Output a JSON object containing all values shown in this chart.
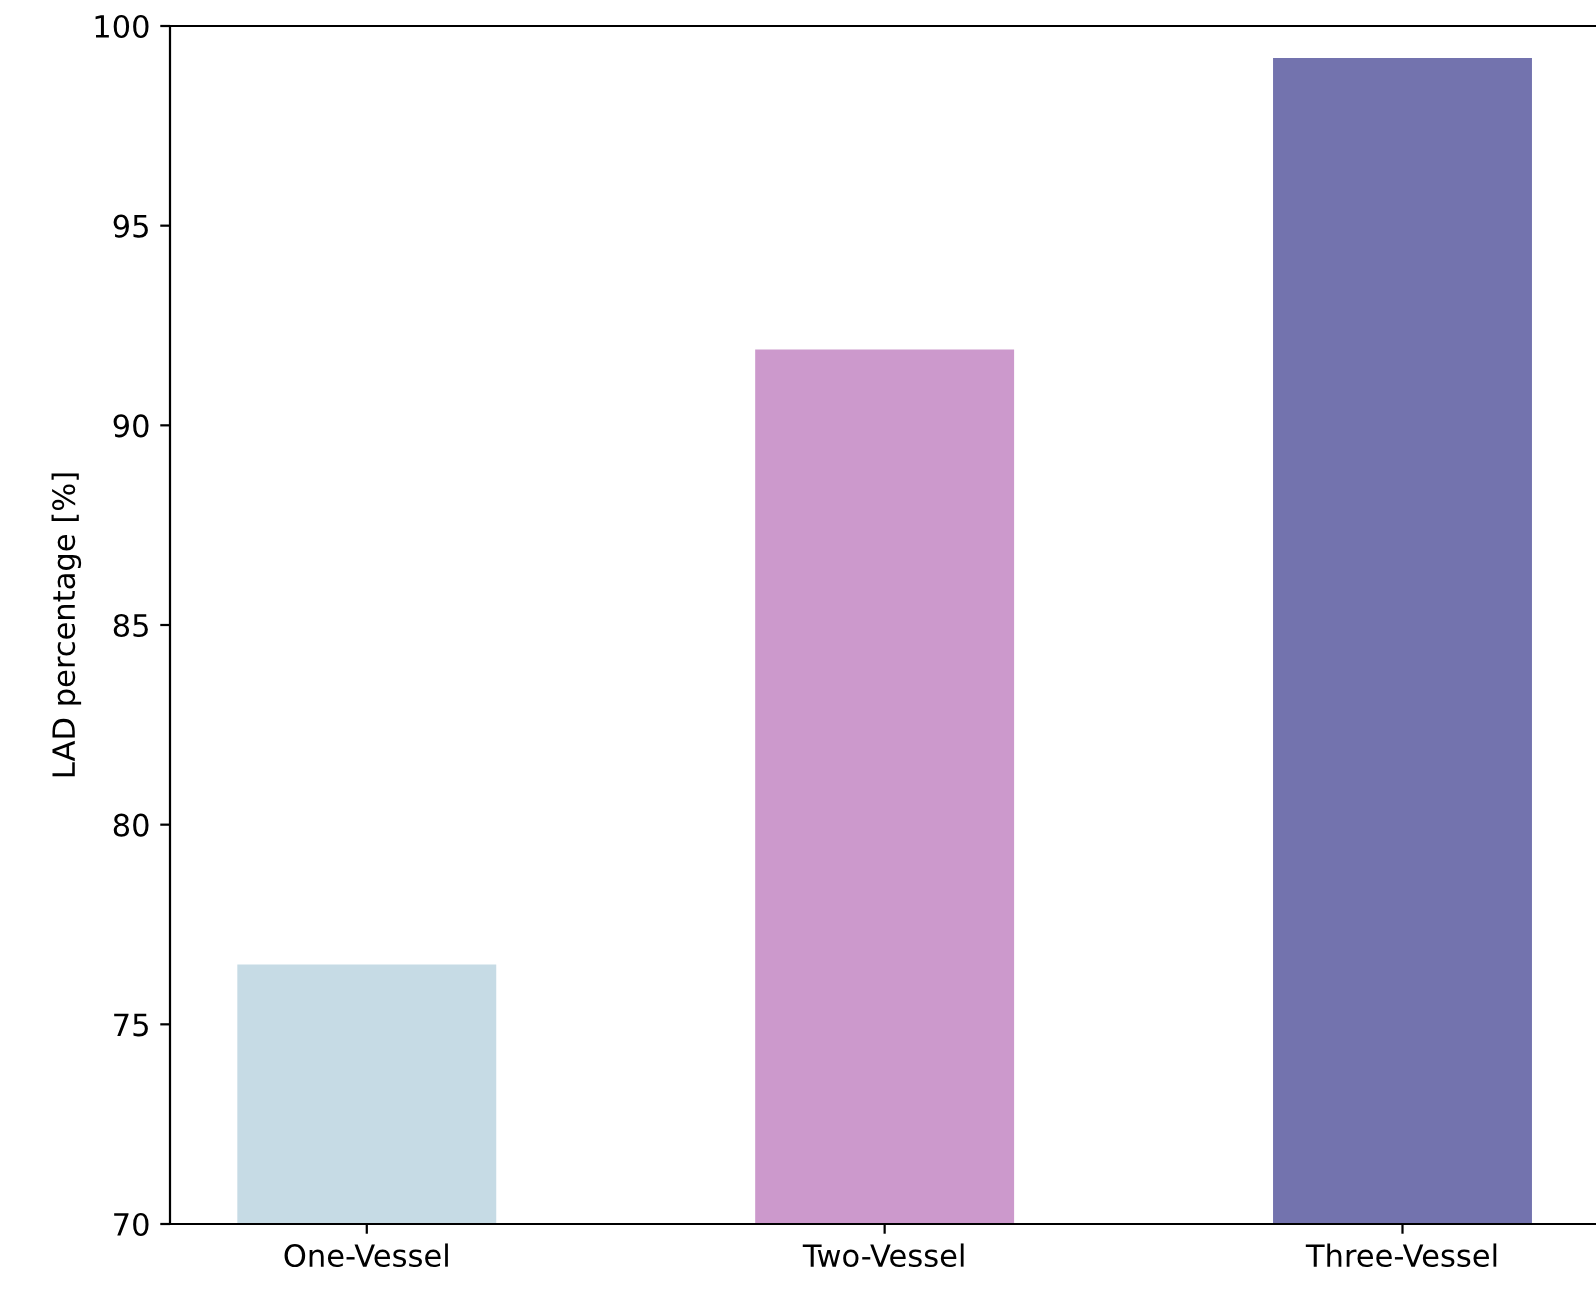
{
  "chart_data": {
    "type": "bar",
    "ylabel": "LAD percentage [%]",
    "categories": [
      "One-Vessel",
      "Two-Vessel",
      "Three-Vessel"
    ],
    "values": [
      76.5,
      91.9,
      99.2
    ],
    "colors": [
      "#c6dbe5",
      "#cc99cc",
      "#7373ae"
    ],
    "ylim": [
      70,
      100
    ],
    "yticks": [
      70,
      75,
      80,
      85,
      90,
      95,
      100
    ],
    "grid": false
  }
}
